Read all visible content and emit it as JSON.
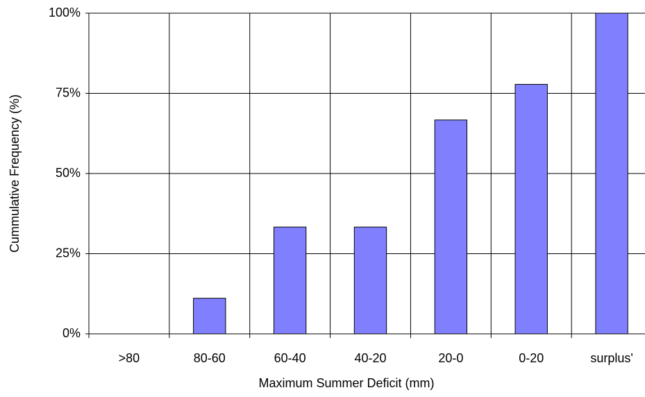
{
  "chart_data": {
    "type": "bar",
    "x_label": "Maximum Summer Deficit (mm)",
    "y_label": "Cummulative Frequency (%)",
    "categories": [
      ">80",
      "80-60",
      "60-40",
      "40-20",
      "20-0",
      "0-20",
      "surplus'"
    ],
    "values": [
      0,
      11.1,
      33.3,
      33.3,
      66.7,
      77.8,
      100
    ],
    "color": "#8080ff",
    "ylim": [
      0,
      100
    ],
    "yticks": [
      {
        "value": 0,
        "label": "0%"
      },
      {
        "value": 25,
        "label": "25%"
      },
      {
        "value": 50,
        "label": "50%"
      },
      {
        "value": 75,
        "label": "75%"
      },
      {
        "value": 100,
        "label": "100%"
      }
    ],
    "grid": true
  }
}
